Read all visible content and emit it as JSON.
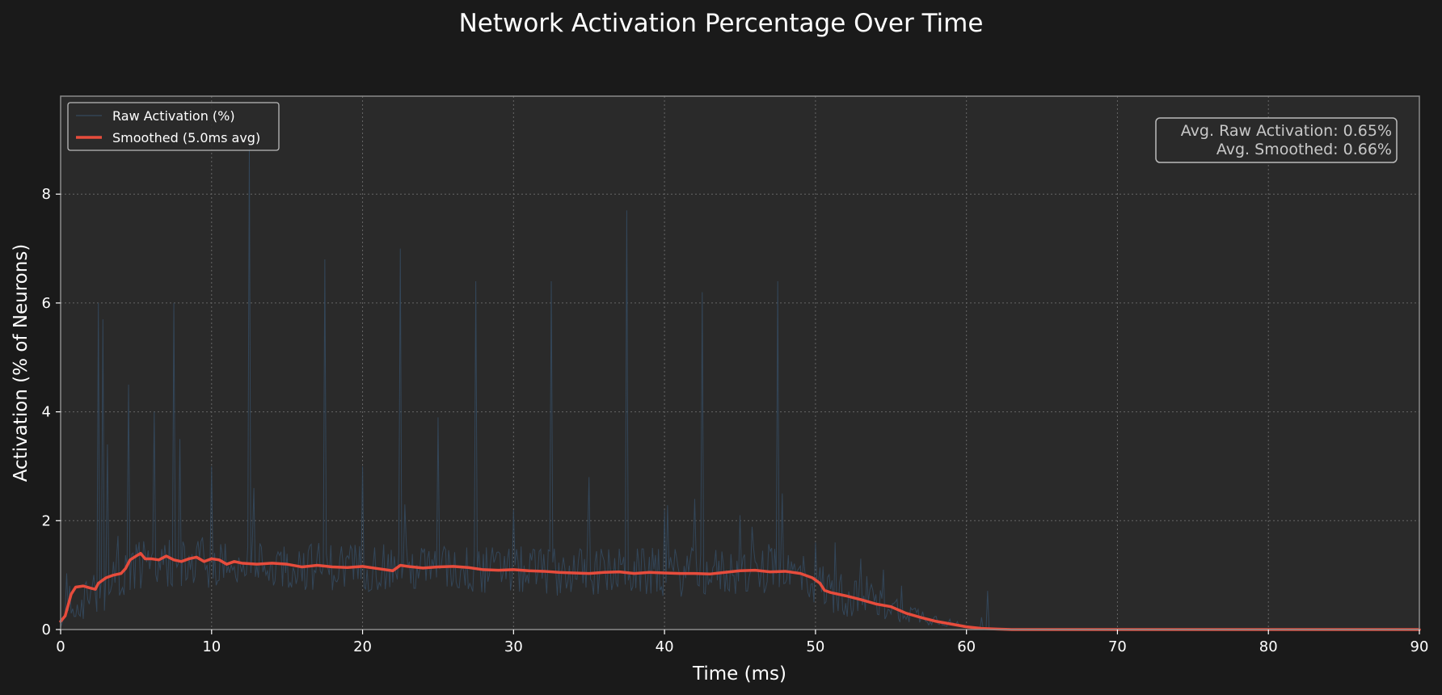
{
  "colors": {
    "figure_background": "#1a1a1a",
    "plot_background": "#2a2a2a",
    "raw_line": "#34495e",
    "smoothed_line": "#e74c3c",
    "grid": "#666666",
    "text": "#ffffff",
    "stats_text": "#c8c8c8"
  },
  "chart_data": {
    "type": "line",
    "title": "Network Activation Percentage Over Time",
    "xlabel": "Time (ms)",
    "ylabel": "Activation (% of Neurons)",
    "xlim": [
      0,
      90
    ],
    "ylim": [
      0,
      9.8
    ],
    "xticks": [
      0,
      10,
      20,
      30,
      40,
      50,
      60,
      70,
      80,
      90
    ],
    "yticks": [
      0,
      2,
      4,
      6,
      8
    ],
    "grid": true,
    "grid_style": "dotted",
    "legend_position": "top-left",
    "legend": [
      "Raw Activation (%)",
      "Smoothed (5.0ms avg)"
    ],
    "annotation": {
      "position": "top-right",
      "lines": [
        "Avg. Raw Activation: 0.65%",
        "Avg. Smoothed: 0.66%"
      ]
    },
    "series": [
      {
        "name": "Raw Activation (%)",
        "color": "#34495e",
        "noisy": true,
        "sample_step": 0.1,
        "baseline": [
          [
            0,
            0.1
          ],
          [
            1,
            0.4
          ],
          [
            2,
            0.6
          ],
          [
            3,
            0.8
          ],
          [
            4,
            1.0
          ],
          [
            5,
            1.2
          ],
          [
            10,
            1.2
          ],
          [
            20,
            1.15
          ],
          [
            30,
            1.08
          ],
          [
            40,
            1.05
          ],
          [
            48,
            1.05
          ],
          [
            50,
            0.9
          ],
          [
            51,
            0.7
          ],
          [
            53,
            0.55
          ],
          [
            55,
            0.42
          ],
          [
            57,
            0.25
          ],
          [
            59,
            0.12
          ],
          [
            60,
            0.05
          ],
          [
            61,
            0.02
          ],
          [
            62,
            0
          ],
          [
            90,
            0
          ]
        ],
        "noise_amplitude": 0.45,
        "spikes": [
          [
            2.5,
            6.0
          ],
          [
            2.8,
            5.7
          ],
          [
            3.1,
            3.4
          ],
          [
            4.5,
            4.5
          ],
          [
            6.2,
            4.0
          ],
          [
            7.5,
            6.0
          ],
          [
            7.9,
            3.5
          ],
          [
            10.0,
            3.0
          ],
          [
            12.5,
            8.9
          ],
          [
            12.8,
            2.6
          ],
          [
            17.5,
            6.8
          ],
          [
            20.0,
            3.0
          ],
          [
            22.5,
            7.0
          ],
          [
            22.8,
            2.3
          ],
          [
            25.0,
            3.9
          ],
          [
            27.5,
            6.4
          ],
          [
            30.0,
            2.2
          ],
          [
            32.5,
            6.4
          ],
          [
            35.0,
            2.8
          ],
          [
            37.5,
            7.7
          ],
          [
            40.0,
            2.2
          ],
          [
            42.0,
            2.4
          ],
          [
            42.5,
            6.2
          ],
          [
            45.0,
            2.1
          ],
          [
            47.5,
            6.4
          ],
          [
            47.8,
            2.5
          ],
          [
            50.0,
            1.6
          ],
          [
            51.3,
            1.6
          ],
          [
            53.0,
            1.3
          ],
          [
            54.5,
            1.1
          ]
        ]
      },
      {
        "name": "Smoothed (5.0ms avg)",
        "color": "#e74c3c",
        "points": [
          [
            0,
            0.15
          ],
          [
            0.3,
            0.25
          ],
          [
            0.5,
            0.45
          ],
          [
            0.7,
            0.65
          ],
          [
            1.0,
            0.78
          ],
          [
            1.5,
            0.8
          ],
          [
            2.0,
            0.76
          ],
          [
            2.3,
            0.74
          ],
          [
            2.5,
            0.85
          ],
          [
            3.0,
            0.95
          ],
          [
            3.5,
            1.0
          ],
          [
            4.0,
            1.03
          ],
          [
            4.3,
            1.12
          ],
          [
            4.6,
            1.28
          ],
          [
            5.0,
            1.35
          ],
          [
            5.3,
            1.4
          ],
          [
            5.6,
            1.3
          ],
          [
            6.0,
            1.3
          ],
          [
            6.5,
            1.28
          ],
          [
            7.0,
            1.35
          ],
          [
            7.5,
            1.28
          ],
          [
            8.0,
            1.25
          ],
          [
            8.5,
            1.3
          ],
          [
            9.0,
            1.33
          ],
          [
            9.5,
            1.25
          ],
          [
            10.0,
            1.3
          ],
          [
            10.5,
            1.28
          ],
          [
            11.0,
            1.2
          ],
          [
            11.5,
            1.25
          ],
          [
            12.0,
            1.22
          ],
          [
            13.0,
            1.2
          ],
          [
            14.0,
            1.22
          ],
          [
            15.0,
            1.2
          ],
          [
            16.0,
            1.15
          ],
          [
            17.0,
            1.18
          ],
          [
            18.0,
            1.15
          ],
          [
            19.0,
            1.14
          ],
          [
            20.0,
            1.16
          ],
          [
            21.0,
            1.12
          ],
          [
            22.0,
            1.08
          ],
          [
            22.5,
            1.18
          ],
          [
            23.0,
            1.16
          ],
          [
            24.0,
            1.13
          ],
          [
            25.0,
            1.15
          ],
          [
            26.0,
            1.16
          ],
          [
            27.0,
            1.14
          ],
          [
            28.0,
            1.1
          ],
          [
            29.0,
            1.09
          ],
          [
            30.0,
            1.1
          ],
          [
            31.0,
            1.08
          ],
          [
            32.0,
            1.07
          ],
          [
            33.0,
            1.05
          ],
          [
            34.0,
            1.04
          ],
          [
            35.0,
            1.03
          ],
          [
            36.0,
            1.05
          ],
          [
            37.0,
            1.06
          ],
          [
            38.0,
            1.03
          ],
          [
            39.0,
            1.05
          ],
          [
            40.0,
            1.04
          ],
          [
            41.0,
            1.03
          ],
          [
            42.0,
            1.03
          ],
          [
            43.0,
            1.02
          ],
          [
            44.0,
            1.05
          ],
          [
            45.0,
            1.08
          ],
          [
            46.0,
            1.09
          ],
          [
            47.0,
            1.06
          ],
          [
            48.0,
            1.07
          ],
          [
            49.0,
            1.03
          ],
          [
            49.8,
            0.95
          ],
          [
            50.3,
            0.85
          ],
          [
            50.6,
            0.72
          ],
          [
            51.0,
            0.68
          ],
          [
            52.0,
            0.62
          ],
          [
            53.0,
            0.55
          ],
          [
            54.0,
            0.47
          ],
          [
            55.0,
            0.42
          ],
          [
            56.0,
            0.3
          ],
          [
            57.0,
            0.22
          ],
          [
            58.0,
            0.15
          ],
          [
            59.0,
            0.1
          ],
          [
            60.0,
            0.05
          ],
          [
            61.0,
            0.02
          ],
          [
            62.0,
            0.01
          ],
          [
            63.0,
            0.0
          ],
          [
            90.0,
            0.0
          ]
        ]
      }
    ]
  }
}
